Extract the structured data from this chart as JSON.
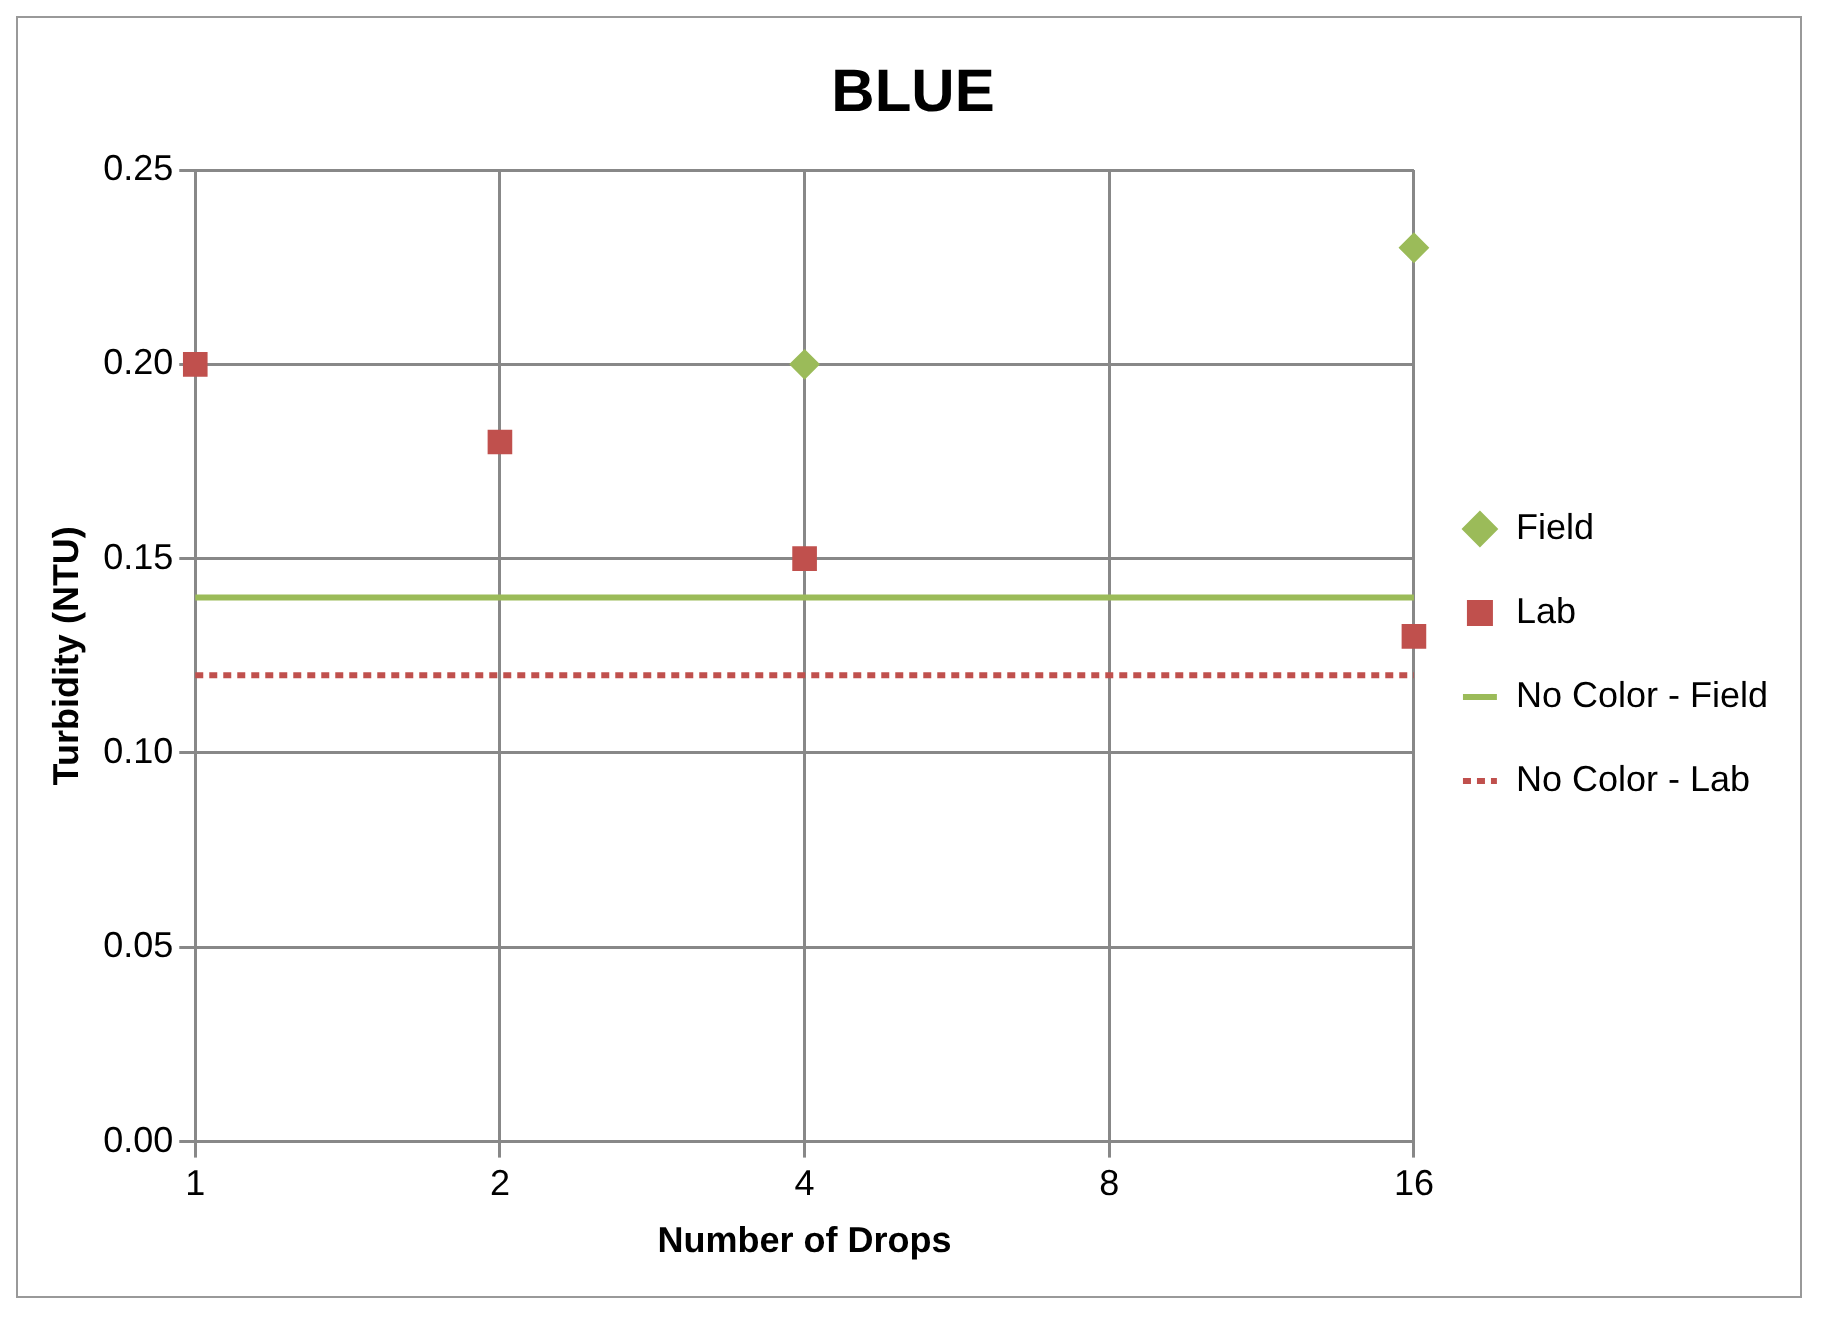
{
  "chart_data": {
    "type": "scatter",
    "title": "BLUE",
    "xlabel": "Number of Drops",
    "ylabel": "Turbidity (NTU)",
    "categories": [
      "1",
      "2",
      "4",
      "8",
      "16"
    ],
    "series": [
      {
        "name": "Field",
        "color": "#9bbb59",
        "marker": "diamond",
        "values": [
          null,
          null,
          0.2,
          null,
          0.23
        ]
      },
      {
        "name": "Lab",
        "color": "#c0504d",
        "marker": "square",
        "values": [
          0.2,
          0.18,
          0.15,
          null,
          0.13
        ]
      },
      {
        "name": "No Color - Field",
        "type": "line",
        "color": "#9bbb59",
        "line_style": "solid",
        "marker": "none",
        "values": [
          0.14,
          0.14,
          0.14,
          0.14,
          0.14
        ]
      },
      {
        "name": "No Color - Lab",
        "type": "line",
        "color": "#c0504d",
        "line_style": "dashed",
        "marker": "none",
        "values": [
          0.12,
          0.12,
          0.12,
          0.12,
          0.12
        ]
      }
    ],
    "ylim": [
      0,
      0.25
    ],
    "yticks": [
      {
        "value": 0,
        "label": "0.00"
      },
      {
        "value": 0.05,
        "label": "0.05"
      },
      {
        "value": 0.1,
        "label": "0.10"
      },
      {
        "value": 0.15,
        "label": "0.15"
      },
      {
        "value": 0.2,
        "label": "0.20"
      },
      {
        "value": 0.25,
        "label": "0.25"
      }
    ],
    "grid": true,
    "legend": "right"
  }
}
